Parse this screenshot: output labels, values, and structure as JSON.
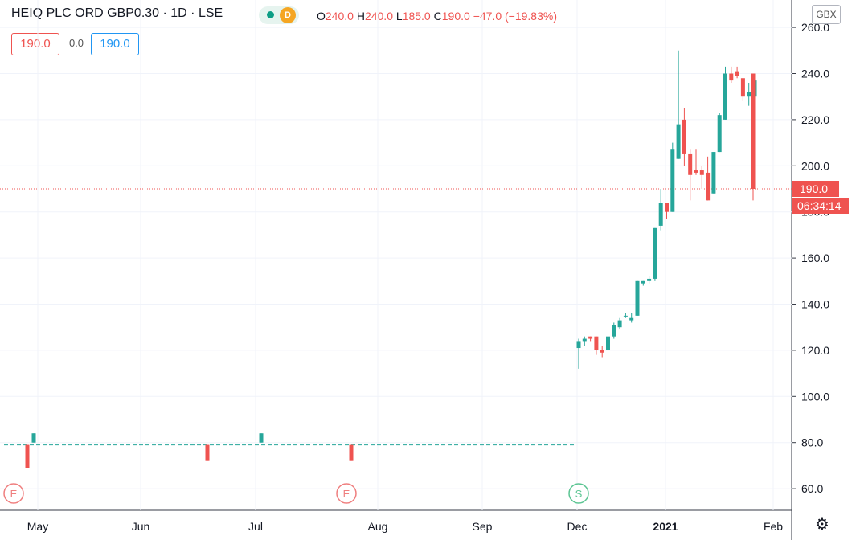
{
  "header": {
    "symbol": "HEIQ PLC ORD GBP0.30 · 1D · LSE",
    "o_label": "O",
    "o": "240.0",
    "h_label": "H",
    "h": "240.0",
    "l_label": "L",
    "l": "185.0",
    "c_label": "C",
    "c": "190.0",
    "change": "−47.0 (−19.83%)",
    "indicator": "D",
    "price_box_red": "190.0",
    "spread": "0.0",
    "price_box_blue": "190.0"
  },
  "currency": "GBX",
  "last_price_label": "190.0",
  "countdown": "06:34:14",
  "colors": {
    "up": "#26a69a",
    "down": "#ef5350",
    "grid": "#f0f3fa",
    "axis": "#131722"
  },
  "chart_data": {
    "type": "candlestick",
    "title": "HEIQ PLC ORD GBP0.30 · 1D · LSE",
    "ylim": [
      50,
      262
    ],
    "y_ticks": [
      "260.0",
      "240.0",
      "220.0",
      "200.0",
      "180.0",
      "160.0",
      "140.0",
      "120.0",
      "100.0",
      "80.0",
      "60.0"
    ],
    "x_ticks": [
      "May",
      "Jun",
      "Jul",
      "Aug",
      "Sep",
      "Dec",
      "2021",
      "Feb"
    ],
    "reference_line": 79,
    "last_price": 190,
    "events": [
      {
        "label": "E",
        "kind": "earnings"
      },
      {
        "label": "E",
        "kind": "earnings"
      },
      {
        "label": "S",
        "kind": "split"
      }
    ],
    "candles": [
      {
        "o": 79,
        "h": 79,
        "l": 69,
        "c": 69
      },
      {
        "o": 80,
        "h": 84,
        "l": 80,
        "c": 84
      },
      {
        "o": 79,
        "h": 79,
        "l": 72,
        "c": 72
      },
      {
        "o": 80,
        "h": 84,
        "l": 80,
        "c": 84
      },
      {
        "o": 79,
        "h": 79,
        "l": 72,
        "c": 72
      },
      {
        "o": 121,
        "h": 125,
        "l": 112,
        "c": 124
      },
      {
        "o": 124,
        "h": 126,
        "l": 122,
        "c": 125
      },
      {
        "o": 126,
        "h": 126,
        "l": 124,
        "c": 125
      },
      {
        "o": 126,
        "h": 126,
        "l": 118,
        "c": 120
      },
      {
        "o": 120,
        "h": 122,
        "l": 117,
        "c": 119
      },
      {
        "o": 120,
        "h": 127,
        "l": 120,
        "c": 126
      },
      {
        "o": 126,
        "h": 132,
        "l": 125,
        "c": 131
      },
      {
        "o": 130,
        "h": 134,
        "l": 129,
        "c": 133
      },
      {
        "o": 135,
        "h": 136,
        "l": 134,
        "c": 135
      },
      {
        "o": 133,
        "h": 136,
        "l": 132,
        "c": 134
      },
      {
        "o": 135,
        "h": 150,
        "l": 135,
        "c": 150
      },
      {
        "o": 149,
        "h": 150,
        "l": 148,
        "c": 150
      },
      {
        "o": 150,
        "h": 152,
        "l": 149,
        "c": 151
      },
      {
        "o": 151,
        "h": 173,
        "l": 150,
        "c": 173
      },
      {
        "o": 174,
        "h": 190,
        "l": 172,
        "c": 184
      },
      {
        "o": 184,
        "h": 184,
        "l": 177,
        "c": 180
      },
      {
        "o": 180,
        "h": 210,
        "l": 180,
        "c": 207
      },
      {
        "o": 203,
        "h": 250,
        "l": 203,
        "c": 218
      },
      {
        "o": 220,
        "h": 225,
        "l": 200,
        "c": 205
      },
      {
        "o": 205,
        "h": 207,
        "l": 185,
        "c": 196
      },
      {
        "o": 198,
        "h": 207,
        "l": 196,
        "c": 197
      },
      {
        "o": 198,
        "h": 200,
        "l": 190,
        "c": 196
      },
      {
        "o": 197,
        "h": 204,
        "l": 185,
        "c": 185
      },
      {
        "o": 188,
        "h": 206,
        "l": 188,
        "c": 206
      },
      {
        "o": 206,
        "h": 223,
        "l": 206,
        "c": 222
      },
      {
        "o": 220,
        "h": 243,
        "l": 220,
        "c": 240
      },
      {
        "o": 240,
        "h": 243,
        "l": 236,
        "c": 237
      },
      {
        "o": 241,
        "h": 243,
        "l": 238,
        "c": 239
      },
      {
        "o": 238,
        "h": 238,
        "l": 228,
        "c": 230
      },
      {
        "o": 230,
        "h": 236,
        "l": 226,
        "c": 232
      },
      {
        "o": 230,
        "h": 240,
        "l": 228,
        "c": 237
      },
      {
        "o": 240,
        "h": 240,
        "l": 185,
        "c": 190
      }
    ]
  }
}
